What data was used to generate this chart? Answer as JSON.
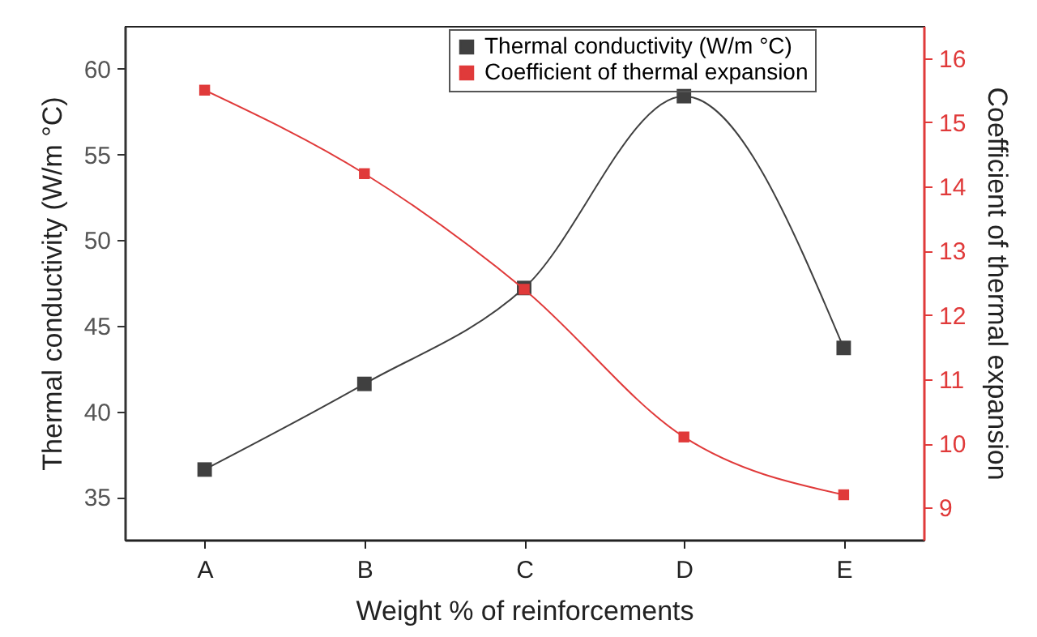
{
  "chart_data": {
    "type": "line",
    "xlabel": "Weight % of reinforcements",
    "ylabel": "Thermal conductivity (W/m °C)",
    "y2label": "Coefficient of thermal expansion",
    "categories": [
      "A",
      "B",
      "C",
      "D",
      "E"
    ],
    "series": [
      {
        "name": "Thermal conductivity (W/m °C)",
        "color": "#404040",
        "values": [
          36.6,
          41.6,
          47.2,
          58.4,
          43.7
        ]
      },
      {
        "name": "Coefficient of thermal expansion",
        "color": "#e03a3a",
        "axis": "y2",
        "values": [
          15.5,
          14.2,
          12.4,
          10.1,
          9.2
        ]
      }
    ],
    "ylim": [
      32.5,
      62.5
    ],
    "yticks": [
      35,
      40,
      45,
      50,
      55,
      60
    ],
    "y2lim": [
      8.5,
      16.5
    ],
    "y2ticks": [
      9,
      10,
      11,
      12,
      13,
      14,
      15,
      16
    ],
    "grid": false,
    "legend": "top",
    "marker": "square",
    "line_style": "solid"
  }
}
